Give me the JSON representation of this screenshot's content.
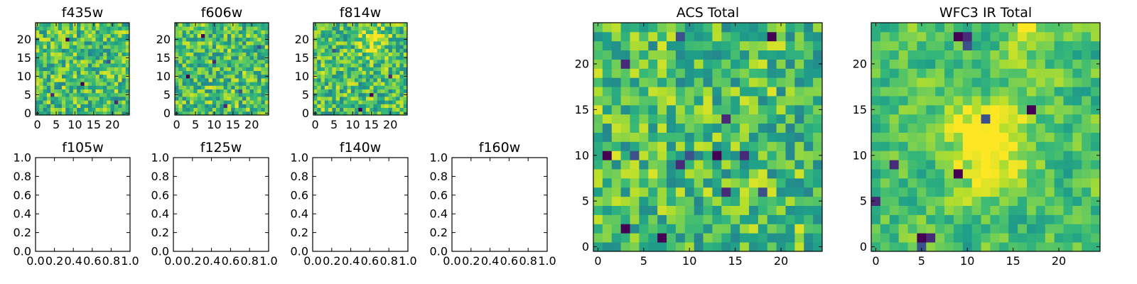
{
  "chart_data": [
    {
      "type": "heatmap",
      "title": "f435w",
      "xlabel": "",
      "ylabel": "",
      "grid_size": 25,
      "xlim": [
        -0.5,
        24.5
      ],
      "ylim": [
        -0.5,
        24.5
      ],
      "xticks": [
        0,
        5,
        10,
        15,
        20
      ],
      "xtick_labels": [
        "0",
        "5",
        "10",
        "15",
        "20"
      ],
      "yticks": [
        0,
        5,
        10,
        15,
        20
      ],
      "ytick_labels": [
        "0",
        "5",
        "10",
        "15",
        "20"
      ],
      "colormap": "viridis",
      "value_range": [
        0,
        1
      ],
      "texture": "noise",
      "seed": 11,
      "blobs": [],
      "outliers": [
        [
          12,
          8
        ],
        [
          4,
          5
        ],
        [
          19,
          14
        ],
        [
          8,
          20
        ],
        [
          21,
          3
        ]
      ]
    },
    {
      "type": "heatmap",
      "title": "f606w",
      "xlabel": "",
      "ylabel": "",
      "grid_size": 25,
      "xlim": [
        -0.5,
        24.5
      ],
      "ylim": [
        -0.5,
        24.5
      ],
      "xticks": [
        0,
        5,
        10,
        15,
        20
      ],
      "xtick_labels": [
        "0",
        "5",
        "10",
        "15",
        "20"
      ],
      "yticks": [
        0,
        5,
        10,
        15,
        20
      ],
      "ytick_labels": [
        "0",
        "5",
        "10",
        "15",
        "20"
      ],
      "colormap": "viridis",
      "value_range": [
        0,
        1
      ],
      "texture": "noise",
      "seed": 23,
      "blobs": [],
      "outliers": [
        [
          3,
          10
        ],
        [
          10,
          14
        ],
        [
          17,
          6
        ],
        [
          7,
          21
        ],
        [
          13,
          2
        ],
        [
          22,
          18
        ]
      ]
    },
    {
      "type": "heatmap",
      "title": "f814w",
      "xlabel": "",
      "ylabel": "",
      "grid_size": 25,
      "xlim": [
        -0.5,
        24.5
      ],
      "ylim": [
        -0.5,
        24.5
      ],
      "xticks": [
        0,
        5,
        10,
        15,
        20
      ],
      "xtick_labels": [
        "0",
        "5",
        "10",
        "15",
        "20"
      ],
      "colormap": "viridis",
      "value_range": [
        0,
        1
      ],
      "texture": "noise",
      "seed": 37,
      "yticks": [
        0,
        5,
        10,
        15,
        20
      ],
      "ytick_labels": [
        "0",
        "5",
        "10",
        "15",
        "20"
      ],
      "blobs": [
        {
          "x": 15,
          "y": 20,
          "r": 2.5,
          "a": 0.25
        }
      ],
      "outliers": [
        [
          12,
          1
        ],
        [
          20,
          10
        ],
        [
          5,
          17
        ],
        [
          15,
          5
        ]
      ]
    },
    {
      "type": "empty",
      "title": "f105w",
      "xlim": [
        0,
        1
      ],
      "ylim": [
        0,
        1
      ],
      "xticks": [
        0,
        0.2,
        0.4,
        0.6,
        0.8,
        1.0
      ],
      "xtick_labels": [
        "0.0",
        "0.2",
        "0.4",
        "0.6",
        "0.8",
        "1.0"
      ],
      "yticks": [
        0,
        0.2,
        0.4,
        0.6,
        0.8,
        1.0
      ],
      "ytick_labels": [
        "0.0",
        "0.2",
        "0.4",
        "0.6",
        "0.8",
        "1.0"
      ]
    },
    {
      "type": "empty",
      "title": "f125w",
      "xlim": [
        0,
        1
      ],
      "ylim": [
        0,
        1
      ],
      "xticks": [
        0,
        0.2,
        0.4,
        0.6,
        0.8,
        1.0
      ],
      "xtick_labels": [
        "0.0",
        "0.2",
        "0.4",
        "0.6",
        "0.8",
        "1.0"
      ],
      "yticks": [
        0,
        0.2,
        0.4,
        0.6,
        0.8,
        1.0
      ],
      "ytick_labels": [
        "0.0",
        "0.2",
        "0.4",
        "0.6",
        "0.8",
        "1.0"
      ]
    },
    {
      "type": "empty",
      "title": "f140w",
      "xlim": [
        0,
        1
      ],
      "ylim": [
        0,
        1
      ],
      "xticks": [
        0,
        0.2,
        0.4,
        0.6,
        0.8,
        1.0
      ],
      "xtick_labels": [
        "0.0",
        "0.2",
        "0.4",
        "0.6",
        "0.8",
        "1.0"
      ],
      "yticks": [
        0,
        0.2,
        0.4,
        0.6,
        0.8,
        1.0
      ],
      "ytick_labels": [
        "0.0",
        "0.2",
        "0.4",
        "0.6",
        "0.8",
        "1.0"
      ]
    },
    {
      "type": "empty",
      "title": "f160w",
      "xlim": [
        0,
        1
      ],
      "ylim": [
        0,
        1
      ],
      "xticks": [
        0,
        0.2,
        0.4,
        0.6,
        0.8,
        1.0
      ],
      "xtick_labels": [
        "0.0",
        "0.2",
        "0.4",
        "0.6",
        "0.8",
        "1.0"
      ],
      "yticks": [
        0,
        0.2,
        0.4,
        0.6,
        0.8,
        1.0
      ],
      "ytick_labels": [
        "0.0",
        "0.2",
        "0.4",
        "0.6",
        "0.8",
        "1.0"
      ]
    },
    {
      "type": "heatmap",
      "title": "ACS Total",
      "xlabel": "",
      "ylabel": "",
      "grid_size": 25,
      "xlim": [
        -0.5,
        24.5
      ],
      "ylim": [
        -0.5,
        24.5
      ],
      "xticks": [
        0,
        5,
        10,
        15,
        20
      ],
      "xtick_labels": [
        "0",
        "5",
        "10",
        "15",
        "20"
      ],
      "yticks": [
        0,
        5,
        10,
        15,
        20
      ],
      "ytick_labels": [
        "0",
        "5",
        "10",
        "15",
        "20"
      ],
      "colormap": "viridis",
      "value_range": [
        0,
        1
      ],
      "texture": "noise",
      "seed": 53,
      "blobs": [],
      "outliers": [
        [
          1,
          10
        ],
        [
          3,
          20
        ],
        [
          9,
          23
        ],
        [
          19,
          23
        ],
        [
          14,
          14
        ],
        [
          10,
          10
        ],
        [
          13,
          10
        ],
        [
          16,
          10
        ],
        [
          4,
          10
        ],
        [
          7,
          1
        ],
        [
          14,
          6
        ],
        [
          18,
          6
        ],
        [
          3,
          2
        ],
        [
          9,
          9
        ]
      ]
    },
    {
      "type": "heatmap",
      "title": "WFC3 IR Total",
      "xlabel": "",
      "ylabel": "",
      "grid_size": 25,
      "xlim": [
        -0.5,
        24.5
      ],
      "ylim": [
        -0.5,
        24.5
      ],
      "xticks": [
        0,
        5,
        10,
        15,
        20
      ],
      "xtick_labels": [
        "0",
        "5",
        "10",
        "15",
        "20"
      ],
      "yticks": [
        0,
        5,
        10,
        15,
        20
      ],
      "ytick_labels": [
        "0",
        "5",
        "10",
        "15",
        "20"
      ],
      "colormap": "viridis",
      "value_range": [
        0,
        1
      ],
      "texture": "smooth",
      "seed": 71,
      "blobs": [
        {
          "x": 12.5,
          "y": 11.5,
          "r": 3.2,
          "a": 0.42
        },
        {
          "x": 16,
          "y": 24,
          "r": 2,
          "a": 0.25
        }
      ],
      "outliers": [
        [
          9,
          23
        ],
        [
          10,
          23
        ],
        [
          10,
          22
        ],
        [
          5,
          1
        ],
        [
          6,
          1
        ],
        [
          5,
          0
        ],
        [
          9,
          8
        ],
        [
          2,
          9
        ],
        [
          12,
          14
        ],
        [
          17,
          15
        ],
        [
          0,
          5
        ]
      ]
    }
  ]
}
